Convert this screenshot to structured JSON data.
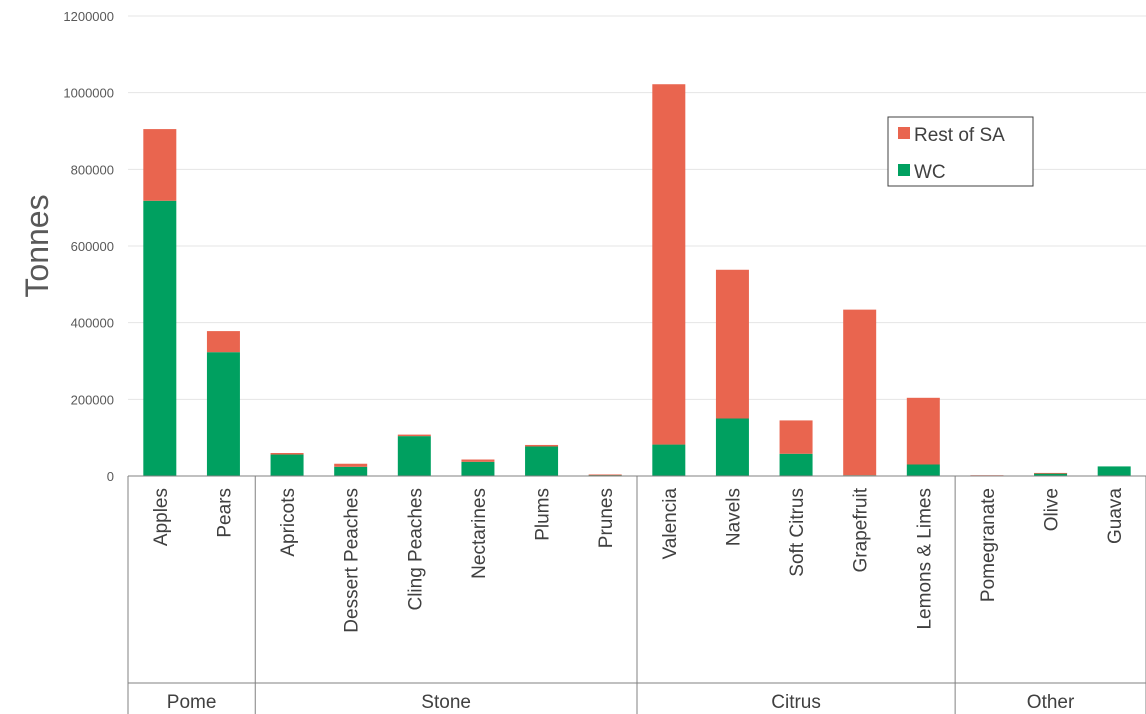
{
  "chart_data": {
    "type": "bar",
    "stacked": true,
    "title": "",
    "xlabel": "",
    "ylabel": "Tonnes",
    "ylim": [
      0,
      1200000
    ],
    "yticks": [
      "0",
      "200000",
      "400000",
      "600000",
      "800000",
      "1000000",
      "1200000"
    ],
    "grid": true,
    "legend_position": "top-right",
    "categories": [
      "Apples",
      "Pears",
      "Apricots",
      "Dessert Peaches",
      "Cling Peaches",
      "Nectarines",
      "Plums",
      "Prunes",
      "Valencia",
      "Navels",
      "Soft Citrus",
      "Grapefruit",
      "Lemons & Limes",
      "Pomegranate",
      "Olive",
      "Guava"
    ],
    "groups": [
      {
        "label": "Pome",
        "count": 2
      },
      {
        "label": "Stone",
        "count": 6
      },
      {
        "label": "Citrus",
        "count": 5
      },
      {
        "label": "Other",
        "count": 3
      }
    ],
    "series": [
      {
        "name": "WC",
        "color": "#00a060",
        "values": [
          718000,
          323000,
          56000,
          24000,
          104000,
          37000,
          77000,
          3000,
          82000,
          150000,
          58000,
          2000,
          30000,
          1000,
          7000,
          25000
        ]
      },
      {
        "name": "Rest of SA",
        "color": "#e9654f",
        "values": [
          187000,
          55000,
          4000,
          8000,
          4000,
          6000,
          4000,
          1000,
          940000,
          388000,
          87000,
          432000,
          174000,
          1000,
          1000,
          0
        ]
      }
    ],
    "legend": [
      {
        "label": "Rest of SA",
        "color": "#e9654f"
      },
      {
        "label": "WC",
        "color": "#00a060"
      }
    ]
  }
}
